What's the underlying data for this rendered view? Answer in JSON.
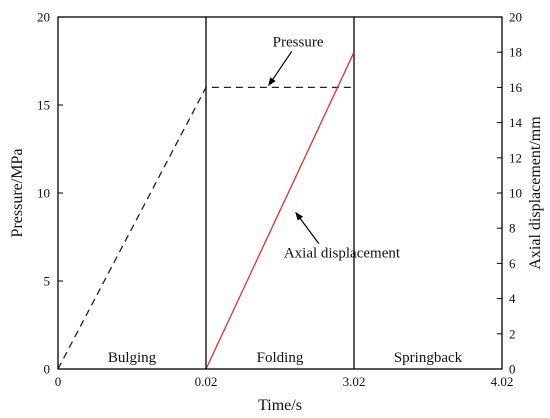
{
  "chart_data": {
    "type": "line",
    "title": "",
    "xlabel": "Time/s",
    "ylabel": "Pressure/MPa",
    "y2label": "Axial displacement/mm",
    "xlim": [
      0,
      4.02
    ],
    "ylim": [
      0,
      20
    ],
    "y2lim": [
      0,
      20
    ],
    "x_categories": [
      "0",
      "0.02",
      "3.02",
      "4.02"
    ],
    "y_ticks": [
      0,
      5,
      10,
      15,
      20
    ],
    "y2_ticks": [
      0,
      2,
      4,
      6,
      8,
      10,
      12,
      14,
      16,
      18,
      20
    ],
    "grid": false,
    "legend": "none",
    "phase_boundaries": [
      0.02,
      3.02
    ],
    "phases": [
      {
        "label": "Bulging",
        "x_start": 0,
        "x_end": 0.02
      },
      {
        "label": "Folding",
        "x_start": 0.02,
        "x_end": 3.02
      },
      {
        "label": "Springback",
        "x_start": 3.02,
        "x_end": 4.02
      }
    ],
    "series": [
      {
        "name": "Pressure",
        "axis": "left",
        "style": "dashed",
        "color": "#222222",
        "points": [
          [
            0,
            0
          ],
          [
            0.02,
            16
          ],
          [
            3.02,
            16
          ]
        ]
      },
      {
        "name": "Axial displacement",
        "axis": "right",
        "style": "solid",
        "color": "#e03030",
        "points": [
          [
            0.02,
            0
          ],
          [
            3.02,
            18
          ]
        ]
      }
    ],
    "annotations": [
      {
        "text": "Pressure",
        "target_series": 0,
        "target_point": [
          1.25,
          16
        ]
      },
      {
        "text": "Axial displacement",
        "target_series": 1,
        "target_point": [
          1.8,
          9
        ]
      }
    ]
  }
}
